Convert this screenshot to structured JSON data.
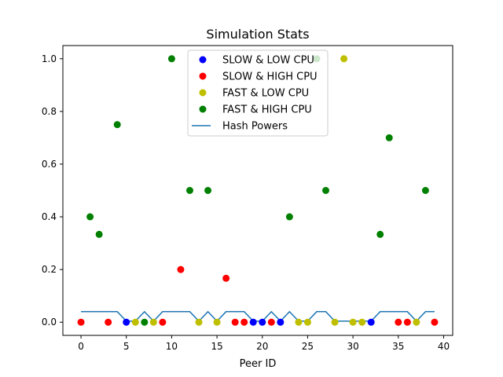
{
  "chart_data": {
    "type": "scatter",
    "title": "Simulation Stats",
    "xlabel": "Peer ID",
    "ylabel": "",
    "xlim": [
      -2,
      41
    ],
    "ylim": [
      -0.05,
      1.05
    ],
    "xticks": [
      0,
      5,
      10,
      15,
      20,
      25,
      30,
      35,
      40
    ],
    "yticks": [
      0.0,
      0.2,
      0.4,
      0.6,
      0.8,
      1.0
    ],
    "xtick_labels": [
      "0",
      "5",
      "10",
      "15",
      "20",
      "25",
      "30",
      "35",
      "40"
    ],
    "ytick_labels": [
      "0.0",
      "0.2",
      "0.4",
      "0.6",
      "0.8",
      "1.0"
    ],
    "legend_position": "top-center",
    "series": [
      {
        "name": "SLOW & LOW CPU",
        "kind": "scatter",
        "color": "#0000ff",
        "points": [
          [
            5,
            0
          ],
          [
            19,
            0
          ],
          [
            20,
            0
          ],
          [
            22,
            0
          ],
          [
            32,
            0
          ]
        ]
      },
      {
        "name": "SLOW & HIGH CPU",
        "kind": "scatter",
        "color": "#ff0000",
        "points": [
          [
            0,
            0
          ],
          [
            3,
            0
          ],
          [
            9,
            0
          ],
          [
            11,
            0.2
          ],
          [
            16,
            0.1667
          ],
          [
            17,
            0
          ],
          [
            18,
            0
          ],
          [
            21,
            0
          ],
          [
            35,
            0
          ],
          [
            36,
            0
          ],
          [
            39,
            0
          ]
        ]
      },
      {
        "name": "FAST & LOW CPU",
        "kind": "scatter",
        "color": "#bfbf00",
        "points": [
          [
            6,
            0
          ],
          [
            8,
            0
          ],
          [
            13,
            0
          ],
          [
            15,
            0
          ],
          [
            24,
            0
          ],
          [
            25,
            0
          ],
          [
            28,
            0
          ],
          [
            29,
            1.0
          ],
          [
            30,
            0
          ],
          [
            31,
            0
          ],
          [
            37,
            0
          ]
        ]
      },
      {
        "name": "FAST & HIGH CPU",
        "kind": "scatter",
        "color": "#008000",
        "points": [
          [
            1,
            0.4
          ],
          [
            2,
            0.3333
          ],
          [
            4,
            0.75
          ],
          [
            7,
            0
          ],
          [
            10,
            1.0
          ],
          [
            12,
            0.5
          ],
          [
            14,
            0.5
          ],
          [
            23,
            0.4
          ],
          [
            26,
            1.0
          ],
          [
            27,
            0.5
          ],
          [
            33,
            0.3333
          ],
          [
            34,
            0.7
          ],
          [
            38,
            0.5
          ]
        ]
      },
      {
        "name": "Hash Powers",
        "kind": "line",
        "color": "#1f77b4",
        "x": [
          0,
          1,
          2,
          3,
          4,
          5,
          6,
          7,
          8,
          9,
          10,
          11,
          12,
          13,
          14,
          15,
          16,
          17,
          18,
          19,
          20,
          21,
          22,
          23,
          24,
          25,
          26,
          27,
          28,
          29,
          30,
          31,
          32,
          33,
          34,
          35,
          36,
          37,
          38,
          39
        ],
        "y": [
          0.04,
          0.04,
          0.04,
          0.04,
          0.04,
          0.004,
          0.004,
          0.04,
          0.004,
          0.04,
          0.04,
          0.04,
          0.04,
          0.004,
          0.04,
          0.004,
          0.04,
          0.04,
          0.04,
          0.004,
          0.004,
          0.04,
          0.004,
          0.04,
          0.004,
          0.004,
          0.04,
          0.04,
          0.004,
          0.004,
          0.004,
          0.004,
          0.004,
          0.04,
          0.04,
          0.04,
          0.04,
          0.004,
          0.04,
          0.04
        ]
      }
    ]
  }
}
